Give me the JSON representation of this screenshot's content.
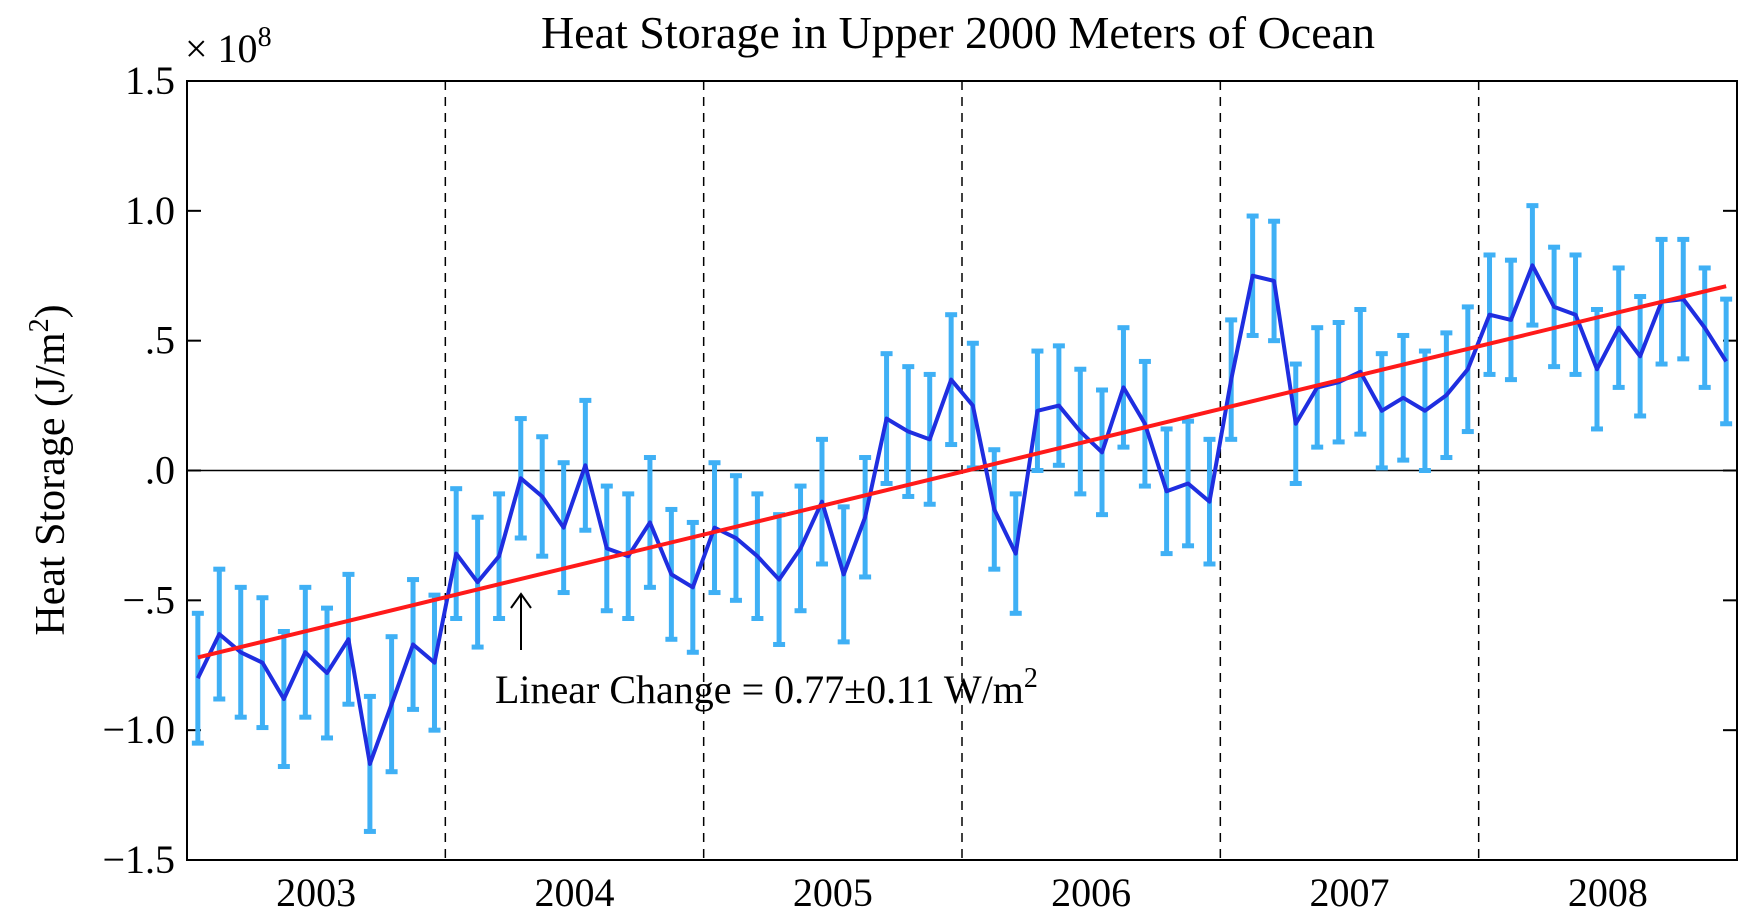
{
  "chart_data": {
    "type": "errorline",
    "title": "Heat Storage in Upper 2000 Meters of Ocean",
    "y_label": "Heat Storage (J/m",
    "y_label_sup": "2",
    "y_label_end": ")",
    "y_multiplier": "× 10",
    "y_multiplier_exp": "8",
    "annotation": "Linear Change = 0.77±0.11 W/m",
    "annotation_sup": "2",
    "xlim": [
      2003,
      2009
    ],
    "xticks": [
      {
        "value": 2003.5,
        "label": "2003"
      },
      {
        "value": 2004.5,
        "label": "2004"
      },
      {
        "value": 2005.5,
        "label": "2005"
      },
      {
        "value": 2006.5,
        "label": "2006"
      },
      {
        "value": 2007.5,
        "label": "2007"
      },
      {
        "value": 2008.5,
        "label": "2008"
      }
    ],
    "year_dividers": [
      2004,
      2005,
      2006,
      2007,
      2008
    ],
    "ylim": [
      -1.5,
      1.5
    ],
    "yticks": [
      {
        "value": -1.5,
        "label": "−1.5"
      },
      {
        "value": -1.0,
        "label": "−1.0"
      },
      {
        "value": -0.5,
        "label": "−.5"
      },
      {
        "value": 0,
        "label": ".0"
      },
      {
        "value": 0.5,
        "label": ".5"
      },
      {
        "value": 1.0,
        "label": "1.0"
      },
      1.5
    ],
    "x": [
      2003.042,
      2003.125,
      2003.208,
      2003.292,
      2003.375,
      2003.458,
      2003.542,
      2003.625,
      2003.708,
      2003.792,
      2003.875,
      2003.958,
      2004.042,
      2004.125,
      2004.208,
      2004.292,
      2004.375,
      2004.458,
      2004.542,
      2004.625,
      2004.708,
      2004.792,
      2004.875,
      2004.958,
      2005.042,
      2005.125,
      2005.208,
      2005.292,
      2005.375,
      2005.458,
      2005.542,
      2005.625,
      2005.708,
      2005.792,
      2005.875,
      2005.958,
      2006.042,
      2006.125,
      2006.208,
      2006.292,
      2006.375,
      2006.458,
      2006.542,
      2006.625,
      2006.708,
      2006.792,
      2006.875,
      2006.958,
      2007.042,
      2007.125,
      2007.208,
      2007.292,
      2007.375,
      2007.458,
      2007.542,
      2007.625,
      2007.708,
      2007.792,
      2007.875,
      2007.958,
      2008.042,
      2008.125,
      2008.208,
      2008.292,
      2008.375,
      2008.458,
      2008.542,
      2008.625,
      2008.708,
      2008.792,
      2008.875,
      2008.958
    ],
    "series": [
      {
        "color": "#1f2ee0",
        "error_color": "#3fb0f5",
        "values": [
          -0.8,
          -0.63,
          -0.7,
          -0.74,
          -0.88,
          -0.7,
          -0.78,
          -0.65,
          -1.13,
          -0.9,
          -0.67,
          -0.74,
          -0.32,
          -0.43,
          -0.33,
          -0.03,
          -0.1,
          -0.22,
          0.02,
          -0.3,
          -0.33,
          -0.2,
          -0.4,
          -0.45,
          -0.22,
          -0.26,
          -0.33,
          -0.42,
          -0.3,
          -0.12,
          -0.4,
          -0.18,
          0.2,
          0.15,
          0.12,
          0.35,
          0.25,
          -0.15,
          -0.32,
          0.23,
          0.25,
          0.15,
          0.07,
          0.32,
          0.18,
          -0.08,
          -0.05,
          -0.12,
          0.35,
          0.75,
          0.73,
          0.18,
          0.32,
          0.34,
          0.38,
          0.23,
          0.28,
          0.23,
          0.29,
          0.39,
          0.6,
          0.58,
          0.79,
          0.63,
          0.6,
          0.39,
          0.55,
          0.44,
          0.65,
          0.66,
          0.55,
          0.42
        ],
        "errors": [
          0.25,
          0.25,
          0.25,
          0.25,
          0.26,
          0.25,
          0.25,
          0.25,
          0.26,
          0.26,
          0.25,
          0.26,
          0.25,
          0.25,
          0.24,
          0.23,
          0.23,
          0.25,
          0.25,
          0.24,
          0.24,
          0.25,
          0.25,
          0.25,
          0.25,
          0.24,
          0.24,
          0.25,
          0.24,
          0.24,
          0.26,
          0.23,
          0.25,
          0.25,
          0.25,
          0.25,
          0.24,
          0.23,
          0.23,
          0.23,
          0.23,
          0.24,
          0.24,
          0.23,
          0.24,
          0.24,
          0.24,
          0.24,
          0.23,
          0.23,
          0.23,
          0.23,
          0.23,
          0.23,
          0.24,
          0.22,
          0.24,
          0.23,
          0.24,
          0.24,
          0.23,
          0.23,
          0.23,
          0.23,
          0.23,
          0.23,
          0.23,
          0.23,
          0.24,
          0.23,
          0.23,
          0.24
        ]
      }
    ],
    "trend": {
      "color": "#ff1a1a",
      "x": [
        2003.042,
        2008.958
      ],
      "values": [
        -0.72,
        0.71
      ]
    }
  }
}
